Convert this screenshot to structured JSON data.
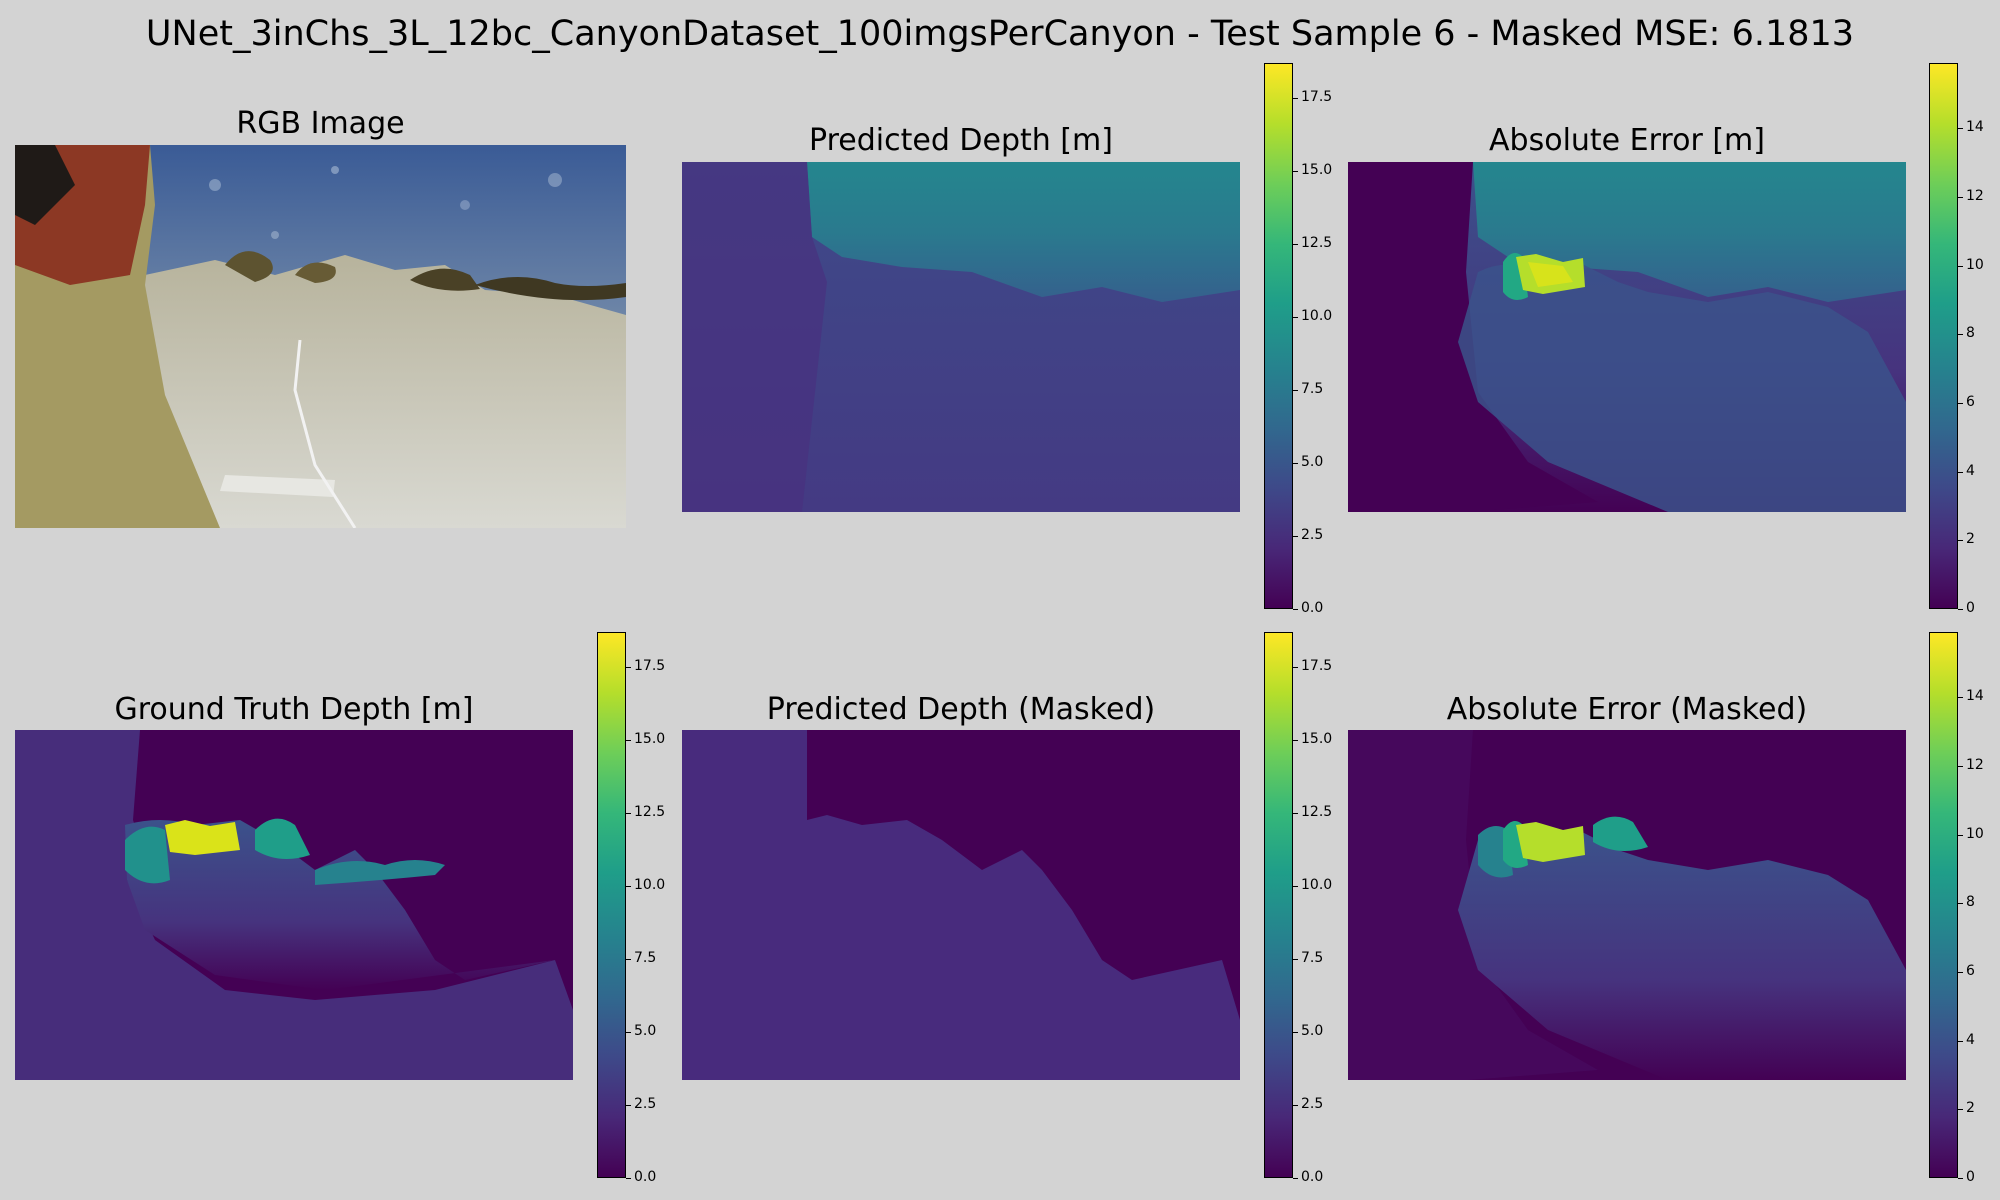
{
  "figure": {
    "title": "UNet_3inChs_3L_12bc_CanyonDataset_100imgsPerCanyon - Test Sample 6 - Masked MSE: 6.1813"
  },
  "panels": {
    "rgb": {
      "title": "RGB Image"
    },
    "pred": {
      "title": "Predicted Depth [m]"
    },
    "err": {
      "title": "Absolute Error [m]"
    },
    "gt": {
      "title": "Ground Truth Depth [m]"
    },
    "pred_masked": {
      "title": "Predicted Depth (Masked)"
    },
    "err_masked": {
      "title": "Absolute Error (Masked)"
    }
  },
  "colors": {
    "background": "#d3d3d3",
    "viridis": [
      "#440154",
      "#482878",
      "#3e4989",
      "#31688e",
      "#26828e",
      "#1f9e89",
      "#35b779",
      "#6ece58",
      "#b5de2b",
      "#fde725"
    ]
  },
  "chart_data": [
    {
      "type": "heatmap",
      "id": "rgb",
      "title": "RGB Image",
      "colormap": "none"
    },
    {
      "type": "heatmap",
      "id": "pred",
      "title": "Predicted Depth [m]",
      "colormap": "viridis",
      "colorbar": {
        "min": 0,
        "max": 18.7,
        "ticks": [
          "0.0",
          "2.5",
          "5.0",
          "7.5",
          "10.0",
          "12.5",
          "15.0",
          "17.5"
        ]
      }
    },
    {
      "type": "heatmap",
      "id": "err",
      "title": "Absolute Error [m]",
      "colormap": "viridis",
      "colorbar": {
        "min": 0,
        "max": 15.9,
        "ticks": [
          "0",
          "2",
          "4",
          "6",
          "8",
          "10",
          "12",
          "14"
        ]
      }
    },
    {
      "type": "heatmap",
      "id": "gt",
      "title": "Ground Truth Depth [m]",
      "colormap": "viridis",
      "colorbar": {
        "min": 0,
        "max": 18.7,
        "ticks": [
          "0.0",
          "2.5",
          "5.0",
          "7.5",
          "10.0",
          "12.5",
          "15.0",
          "17.5"
        ]
      }
    },
    {
      "type": "heatmap",
      "id": "pred_masked",
      "title": "Predicted Depth (Masked)",
      "colormap": "viridis",
      "colorbar": {
        "min": 0,
        "max": 18.7,
        "ticks": [
          "0.0",
          "2.5",
          "5.0",
          "7.5",
          "10.0",
          "12.5",
          "15.0",
          "17.5"
        ]
      }
    },
    {
      "type": "heatmap",
      "id": "err_masked",
      "title": "Absolute Error (Masked)",
      "colormap": "viridis",
      "colorbar": {
        "min": 0,
        "max": 15.9,
        "ticks": [
          "0",
          "2",
          "4",
          "6",
          "8",
          "10",
          "12",
          "14"
        ]
      }
    }
  ]
}
